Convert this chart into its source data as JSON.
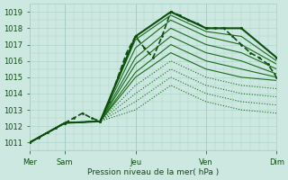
{
  "xlabel": "Pression niveau de la mer( hPa )",
  "ylim": [
    1010.5,
    1019.5
  ],
  "xlim": [
    0,
    168
  ],
  "yticks": [
    1011,
    1012,
    1013,
    1014,
    1015,
    1016,
    1017,
    1018,
    1019
  ],
  "xtick_positions": [
    0,
    24,
    72,
    120,
    168
  ],
  "xtick_labels": [
    "Mer",
    "Sam",
    "Jeu",
    "Ven",
    "Dim"
  ],
  "bg_color": "#cce8e0",
  "grid_color": "#a8cfc7",
  "line_color": "#1a6b1a",
  "line_color_dark": "#0d4d0d",
  "lines": [
    {
      "x": [
        0,
        6,
        12,
        18,
        24,
        30,
        36,
        42,
        48,
        54,
        60,
        66,
        72,
        78,
        84,
        90,
        96,
        102,
        108,
        114,
        120,
        126,
        132,
        138,
        144,
        150,
        156,
        162,
        168
      ],
      "y": [
        1011.0,
        1011.3,
        1011.6,
        1011.9,
        1012.2,
        1012.5,
        1012.8,
        1012.5,
        1012.3,
        1013.5,
        1015.0,
        1016.5,
        1017.5,
        1016.8,
        1016.2,
        1017.5,
        1019.0,
        1018.8,
        1018.5,
        1018.3,
        1018.0,
        1018.0,
        1018.0,
        1017.5,
        1017.0,
        1016.5,
        1016.2,
        1015.8,
        1015.0
      ],
      "style": "--",
      "lw": 1.2,
      "marker": ".",
      "ms": 2
    },
    {
      "x": [
        0,
        24,
        48,
        72,
        96,
        120,
        144,
        168
      ],
      "y": [
        1011.0,
        1012.2,
        1012.3,
        1017.5,
        1019.0,
        1018.0,
        1018.0,
        1016.2
      ],
      "style": "-",
      "lw": 1.5,
      "marker": ".",
      "ms": 2.5
    },
    {
      "x": [
        0,
        24,
        48,
        72,
        96,
        120,
        144,
        168
      ],
      "y": [
        1011.0,
        1012.2,
        1012.3,
        1017.3,
        1018.8,
        1017.8,
        1017.5,
        1016.0
      ],
      "style": "-",
      "lw": 0.8,
      "marker": null
    },
    {
      "x": [
        0,
        24,
        48,
        72,
        96,
        120,
        144,
        168
      ],
      "y": [
        1011.0,
        1012.2,
        1012.3,
        1016.8,
        1018.5,
        1017.5,
        1017.0,
        1015.8
      ],
      "style": "-",
      "lw": 0.8,
      "marker": null
    },
    {
      "x": [
        0,
        24,
        48,
        72,
        96,
        120,
        144,
        168
      ],
      "y": [
        1011.0,
        1012.2,
        1012.3,
        1016.2,
        1018.0,
        1017.0,
        1016.5,
        1015.5
      ],
      "style": "-",
      "lw": 0.8,
      "marker": null
    },
    {
      "x": [
        0,
        24,
        48,
        72,
        96,
        120,
        144,
        168
      ],
      "y": [
        1011.0,
        1012.2,
        1012.3,
        1015.8,
        1017.5,
        1016.5,
        1016.0,
        1015.2
      ],
      "style": "-",
      "lw": 0.8,
      "marker": null
    },
    {
      "x": [
        0,
        24,
        48,
        72,
        96,
        120,
        144,
        168
      ],
      "y": [
        1011.0,
        1012.2,
        1012.3,
        1015.3,
        1017.0,
        1016.0,
        1015.5,
        1015.0
      ],
      "style": "-",
      "lw": 0.8,
      "marker": null
    },
    {
      "x": [
        0,
        24,
        48,
        72,
        96,
        120,
        144,
        168
      ],
      "y": [
        1011.0,
        1012.2,
        1012.3,
        1015.0,
        1016.5,
        1015.5,
        1015.0,
        1014.8
      ],
      "style": "-",
      "lw": 0.8,
      "marker": null
    },
    {
      "x": [
        0,
        24,
        48,
        72,
        96,
        120,
        144,
        168
      ],
      "y": [
        1011.0,
        1012.2,
        1012.3,
        1014.5,
        1016.0,
        1015.0,
        1014.5,
        1014.3
      ],
      "style": ":",
      "lw": 0.8,
      "marker": null
    },
    {
      "x": [
        0,
        24,
        48,
        72,
        96,
        120,
        144,
        168
      ],
      "y": [
        1011.0,
        1012.2,
        1012.3,
        1014.0,
        1015.5,
        1014.5,
        1014.0,
        1013.8
      ],
      "style": ":",
      "lw": 0.8,
      "marker": null
    },
    {
      "x": [
        0,
        24,
        48,
        72,
        96,
        120,
        144,
        168
      ],
      "y": [
        1011.0,
        1012.2,
        1012.3,
        1013.5,
        1015.0,
        1014.0,
        1013.5,
        1013.3
      ],
      "style": ":",
      "lw": 0.8,
      "marker": null
    },
    {
      "x": [
        0,
        24,
        48,
        72,
        96,
        120,
        144,
        168
      ],
      "y": [
        1011.0,
        1012.2,
        1012.3,
        1013.0,
        1014.5,
        1013.5,
        1013.0,
        1012.8
      ],
      "style": ":",
      "lw": 0.8,
      "marker": null
    }
  ]
}
